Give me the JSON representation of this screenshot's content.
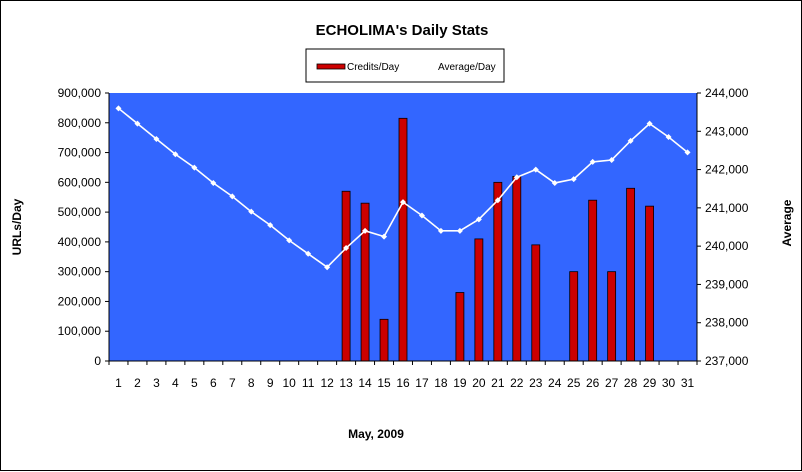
{
  "chart_data": {
    "type": "bar",
    "title": "ECHOLIMA's Daily Stats",
    "xlabel": "May, 2009",
    "ylabel": "URLs/Day",
    "y2label": "Average",
    "ylim": [
      0,
      900000
    ],
    "y2lim": [
      237000,
      244000
    ],
    "yticks": [
      "0",
      "100,000",
      "200,000",
      "300,000",
      "400,000",
      "500,000",
      "600,000",
      "700,000",
      "800,000",
      "900,000"
    ],
    "y2ticks": [
      "237,000",
      "238,000",
      "239,000",
      "240,000",
      "241,000",
      "242,000",
      "243,000",
      "244,000"
    ],
    "categories": [
      "1",
      "2",
      "3",
      "4",
      "5",
      "6",
      "7",
      "8",
      "9",
      "10",
      "11",
      "12",
      "13",
      "14",
      "15",
      "16",
      "17",
      "18",
      "19",
      "20",
      "21",
      "22",
      "23",
      "24",
      "25",
      "26",
      "27",
      "28",
      "29",
      "30",
      "31"
    ],
    "legend_position": "top-center",
    "grid": false,
    "colors": {
      "plot_bg": "#3366ff",
      "bars": "#cc0000",
      "line": "#ffffff"
    },
    "series": [
      {
        "name": "Credits/Day",
        "type": "bar",
        "axis": "left",
        "values": [
          0,
          0,
          0,
          0,
          0,
          0,
          0,
          0,
          0,
          0,
          0,
          0,
          570000,
          530000,
          140000,
          815000,
          0,
          0,
          230000,
          410000,
          600000,
          620000,
          390000,
          0,
          300000,
          540000,
          300000,
          580000,
          520000,
          0,
          0
        ]
      },
      {
        "name": "Average/Day",
        "type": "line",
        "axis": "right",
        "values": [
          243600,
          243200,
          242800,
          242400,
          242050,
          241650,
          241300,
          240900,
          240550,
          240150,
          239800,
          239450,
          239950,
          240400,
          240250,
          241150,
          240800,
          240400,
          240400,
          240700,
          241200,
          241800,
          242000,
          241650,
          241750,
          242200,
          242250,
          242750,
          243200,
          242850,
          242450
        ]
      }
    ]
  }
}
